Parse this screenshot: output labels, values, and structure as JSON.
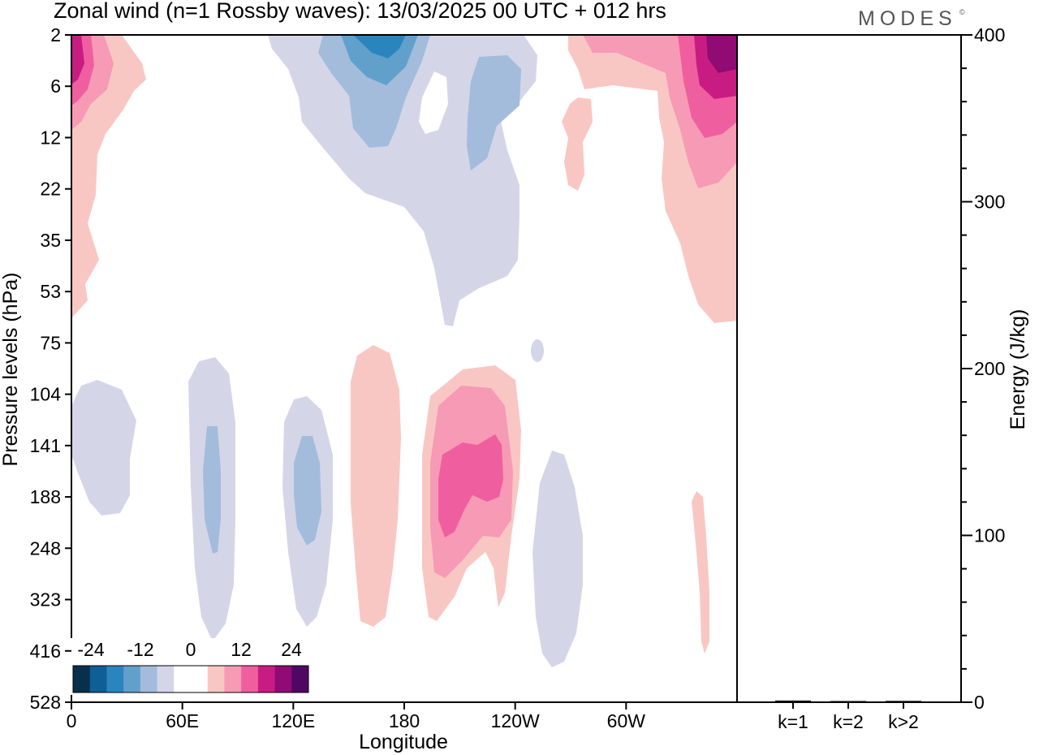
{
  "header": {
    "title": "Zonal wind (n=1 Rossby waves):  13/03/2025  00 UTC  + 012 hrs",
    "brand": "MODES",
    "brand_mark": "©"
  },
  "colors": {
    "neg_24": "#08304d",
    "neg_20": "#0d5f95",
    "neg_16": "#2a85bf",
    "neg_12": "#62a0cc",
    "neg_8": "#a3bcdc",
    "neg_4": "#d4d6e8",
    "zero": "#ffffff",
    "pos_4": "#f9c7c3",
    "pos_8": "#f79ab5",
    "pos_12": "#ef5f9f",
    "pos_16": "#c91c83",
    "pos_20": "#900b74",
    "pos_24": "#4f0763"
  },
  "chart_data": [
    {
      "type": "heatmap",
      "title": "Zonal wind (n=1 Rossby waves):  13/03/2025  00 UTC  + 012 hrs",
      "xlabel": "Longitude",
      "ylabel": "Pressure levels (hPa)",
      "x_tick_labels": [
        "0",
        "60E",
        "120E",
        "180",
        "120W",
        "60W"
      ],
      "y_tick_labels": [
        "2",
        "6",
        "12",
        "22",
        "35",
        "53",
        "75",
        "104",
        "141",
        "188",
        "248",
        "323",
        "416",
        "528"
      ],
      "colorbar": {
        "tick_labels": [
          "-24",
          "-12",
          "0",
          "12",
          "24"
        ],
        "levels": [
          -24,
          -20,
          -16,
          -12,
          -8,
          -4,
          0,
          4,
          8,
          12,
          16,
          20,
          24
        ]
      }
    },
    {
      "type": "bar",
      "ylabel": "Energy (J/kg)",
      "y_tick_labels": [
        "0",
        "100",
        "200",
        "300",
        "400"
      ],
      "ylim": [
        0,
        400
      ],
      "categories": [
        "k=1",
        "k=2",
        "k>2"
      ],
      "values": [
        1,
        0.5,
        0.8
      ]
    }
  ]
}
